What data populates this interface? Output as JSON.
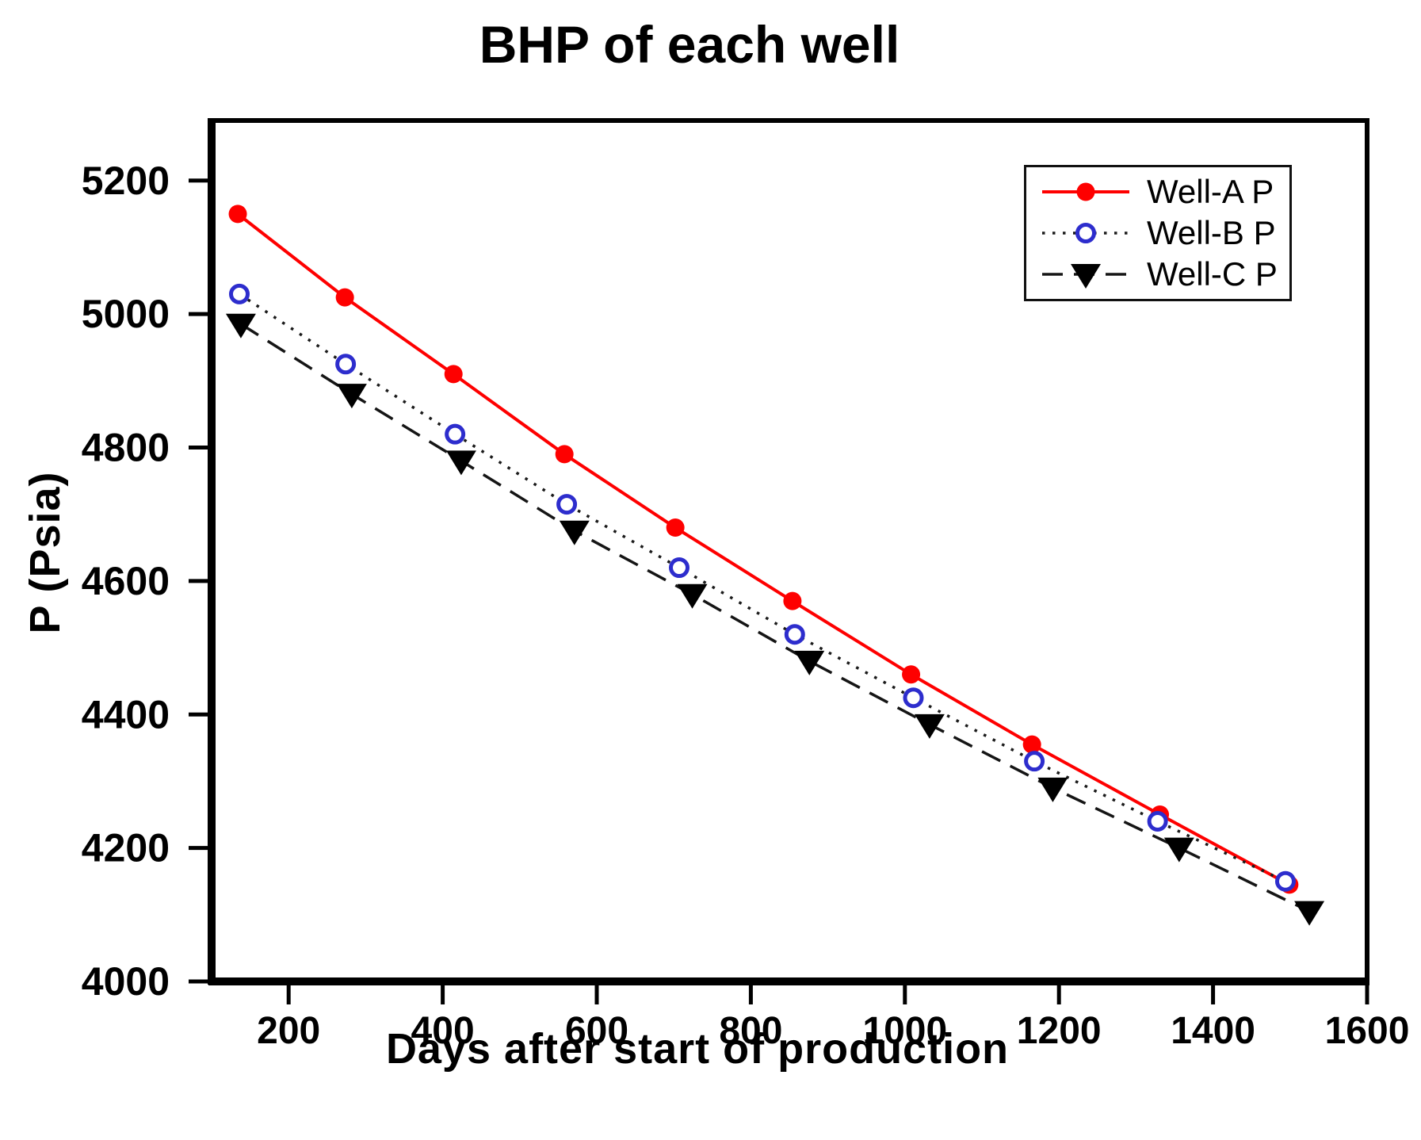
{
  "figure": {
    "title": "BHP of each well",
    "x_axis_label": "Days after start of production",
    "y_axis_label": "P (Psia)"
  },
  "legend": {
    "position": "top-right",
    "items": [
      {
        "label": "Well-A P",
        "marker": "filled-circle-icon",
        "line_style": "solid"
      },
      {
        "label": "Well-B P",
        "marker": "open-circle-icon",
        "line_style": "dotted"
      },
      {
        "label": "Well-C P",
        "marker": "filled-triangle-down-icon",
        "line_style": "dashed"
      }
    ]
  },
  "colors": {
    "well_a_line": "#fe0000",
    "well_a_marker": "#fe0000",
    "well_b_line": "#1a1a1a",
    "well_b_marker_stroke": "#2d2dcd",
    "well_c_line": "#151515",
    "well_c_marker": "#000000",
    "axis": "#000000",
    "text": "#000000",
    "background": "#ffffff"
  },
  "chart_data": {
    "type": "line",
    "title": "BHP of each well",
    "xlabel": "Days after start of production",
    "ylabel": "P (Psia)",
    "xlim": [
      100,
      1600
    ],
    "ylim": [
      4000,
      5290
    ],
    "x_ticks": [
      200,
      400,
      600,
      800,
      1000,
      1200,
      1400,
      1600
    ],
    "y_ticks": [
      4000,
      4200,
      4400,
      4600,
      4800,
      5000,
      5200
    ],
    "grid": false,
    "legend_position": "top-right",
    "series": [
      {
        "name": "Well-A P",
        "line_style": "solid",
        "line_color": "#fe0000",
        "marker": "filled-circle",
        "marker_color": "#fe0000",
        "x": [
          134,
          273,
          414,
          558,
          702,
          854,
          1008,
          1165,
          1331,
          1499
        ],
        "y": [
          5150,
          5025,
          4910,
          4790,
          4680,
          4570,
          4460,
          4355,
          4250,
          4145
        ]
      },
      {
        "name": "Well-B P",
        "line_style": "dotted",
        "line_color": "#1a1a1a",
        "marker": "open-circle",
        "marker_color": "#2d2dcd",
        "x": [
          136,
          274,
          416,
          561,
          707,
          857,
          1011,
          1168,
          1328,
          1494
        ],
        "y": [
          5030,
          4925,
          4820,
          4715,
          4620,
          4520,
          4425,
          4330,
          4240,
          4150
        ]
      },
      {
        "name": "Well-C P",
        "line_style": "dashed",
        "line_color": "#151515",
        "marker": "filled-triangle-down",
        "marker_color": "#000000",
        "x": [
          138,
          282,
          424,
          571,
          724,
          876,
          1032,
          1192,
          1356,
          1525
        ],
        "y": [
          4985,
          4880,
          4780,
          4675,
          4580,
          4480,
          4385,
          4290,
          4200,
          4105
        ]
      }
    ]
  }
}
